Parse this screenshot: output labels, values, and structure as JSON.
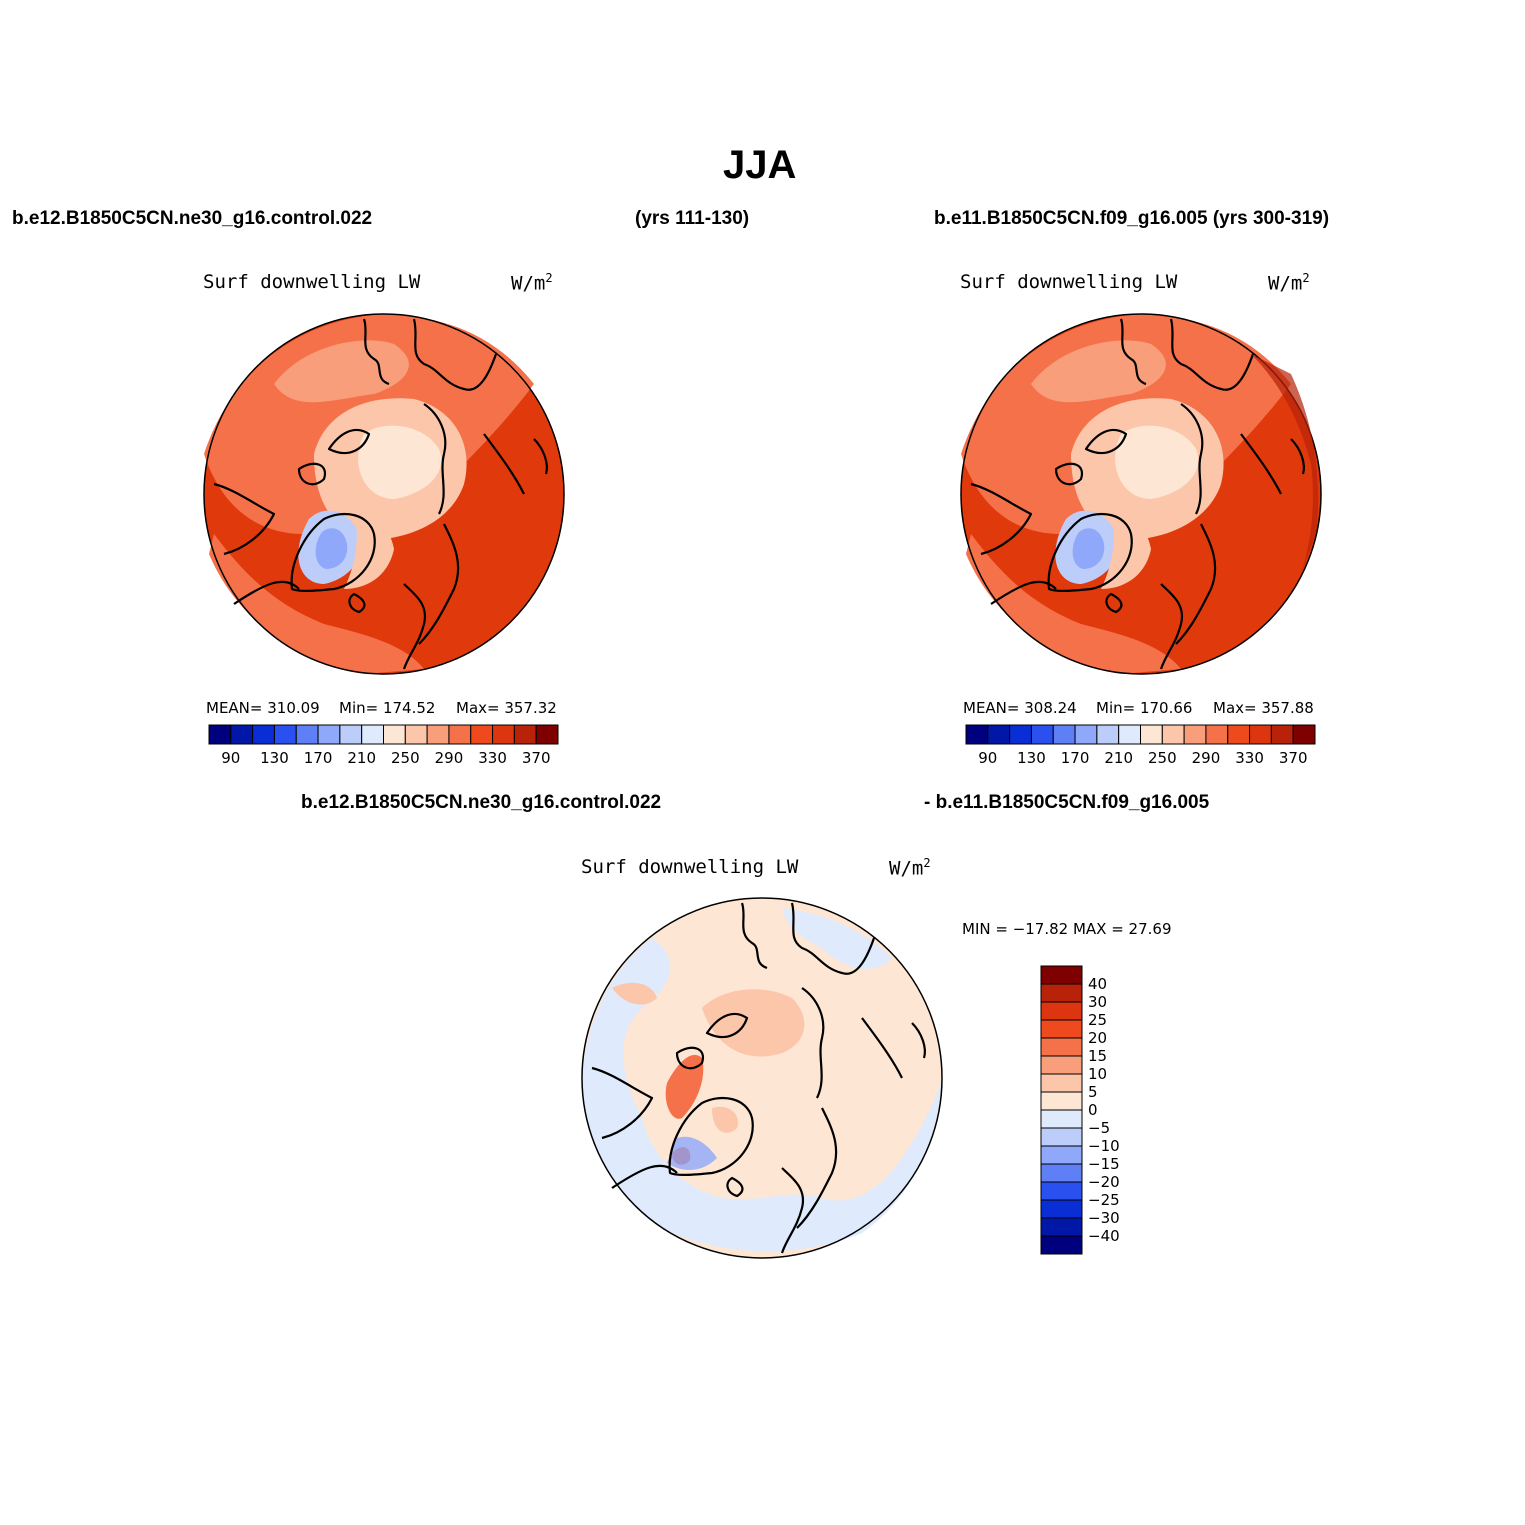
{
  "title": "JJA",
  "case_a": {
    "name": "b.e12.B1850C5CN.ne30_g16.control.022",
    "years": "(yrs 111-130)"
  },
  "case_b": {
    "name": "b.e11.B1850C5CN.f09_g16.005 (yrs 300-319)"
  },
  "diff_title": {
    "left": "b.e12.B1850C5CN.ne30_g16.control.022",
    "right": "- b.e11.B1850C5CN.f09_g16.005"
  },
  "panels": [
    {
      "id": "case-a",
      "variable": "Surf downwelling LW",
      "units": "W/m",
      "units_sup": "2",
      "stats": {
        "mean": "MEAN= 310.09",
        "min": "Min= 174.52",
        "max": "Max= 357.32"
      }
    },
    {
      "id": "case-b",
      "variable": "Surf downwelling LW",
      "units": "W/m",
      "units_sup": "2",
      "stats": {
        "mean": "MEAN= 308.24",
        "min": "Min= 170.66",
        "max": "Max= 357.88"
      }
    },
    {
      "id": "difference",
      "variable": "Surf downwelling LW",
      "units": "W/m",
      "units_sup": "2",
      "stats": {
        "minmax": "MIN = −17.82 MAX =  27.69"
      }
    }
  ],
  "abs_colorbar": {
    "colors": [
      "#00007f",
      "#0017a8",
      "#0a2ed6",
      "#2b50f0",
      "#5f7ff7",
      "#8fa8fa",
      "#bccdf9",
      "#dfeafc",
      "#fde6d4",
      "#fcc6ab",
      "#f99e7a",
      "#f5714a",
      "#ef4a1e",
      "#dc3510",
      "#b82208",
      "#7f0000"
    ],
    "tick_labels": [
      "90",
      "130",
      "170",
      "210",
      "250",
      "290",
      "330",
      "370"
    ]
  },
  "diff_colorbar": {
    "colors": [
      "#00007f",
      "#0017a8",
      "#0a2ed6",
      "#2b50f0",
      "#5f7ff7",
      "#8fa8fa",
      "#bccdf9",
      "#dfeafc",
      "#fde6d4",
      "#fcc6ab",
      "#f99e7a",
      "#f5714a",
      "#ef4a1e",
      "#dc3510",
      "#b82208",
      "#7f0000"
    ],
    "tick_labels": [
      "40",
      "30",
      "25",
      "20",
      "15",
      "10",
      "5",
      "0",
      "−5",
      "−10",
      "−15",
      "−20",
      "−25",
      "−30",
      "−40"
    ]
  },
  "map_colors": {
    "warm_dark": "#e03a0c",
    "warm_mid": "#f5714a",
    "warm_light": "#fcc6ab",
    "warm_pale": "#fde6d4",
    "cool_pale": "#dfeafc",
    "cool_mid": "#8fa8fa",
    "cool_dark": "#5f7ff7"
  }
}
